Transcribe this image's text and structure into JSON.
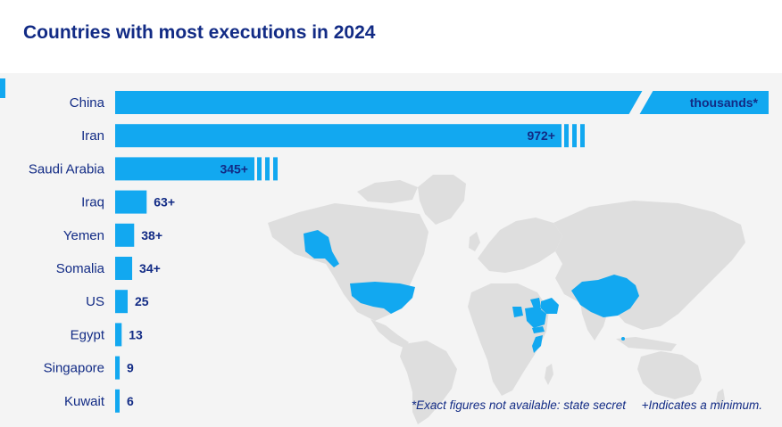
{
  "title": "Countries with most executions in 2024",
  "footnote": {
    "secret": "*Exact figures not available: state secret",
    "minimum": "+Indicates a minimum."
  },
  "colors": {
    "bar": "#12a8f0",
    "map_highlight": "#12a8f0",
    "map_other": "#dedede",
    "text": "#122b85",
    "background": "#f4f4f4"
  },
  "chart_data": {
    "type": "bar",
    "orientation": "horizontal",
    "title": "Countries with most executions in 2024",
    "categories": [
      "China",
      "Iran",
      "Saudi Arabia",
      "Iraq",
      "Yemen",
      "Somalia",
      "US",
      "Egypt",
      "Singapore",
      "Kuwait"
    ],
    "values": [
      null,
      972,
      345,
      63,
      38,
      34,
      25,
      13,
      9,
      6
    ],
    "labels": [
      "thousands*",
      "972+",
      "345+",
      "63+",
      "38+",
      "34+",
      "25",
      "13",
      "9",
      "6"
    ],
    "minimum_flag": [
      false,
      true,
      true,
      true,
      true,
      true,
      false,
      false,
      false,
      false
    ],
    "broken_axis": [
      "China",
      "Iran",
      "Saudi Arabia"
    ],
    "highlighted_countries": [
      "China",
      "Iran",
      "Saudi Arabia",
      "Iraq",
      "Yemen",
      "Somalia",
      "US",
      "Egypt",
      "Singapore",
      "Kuwait"
    ]
  }
}
